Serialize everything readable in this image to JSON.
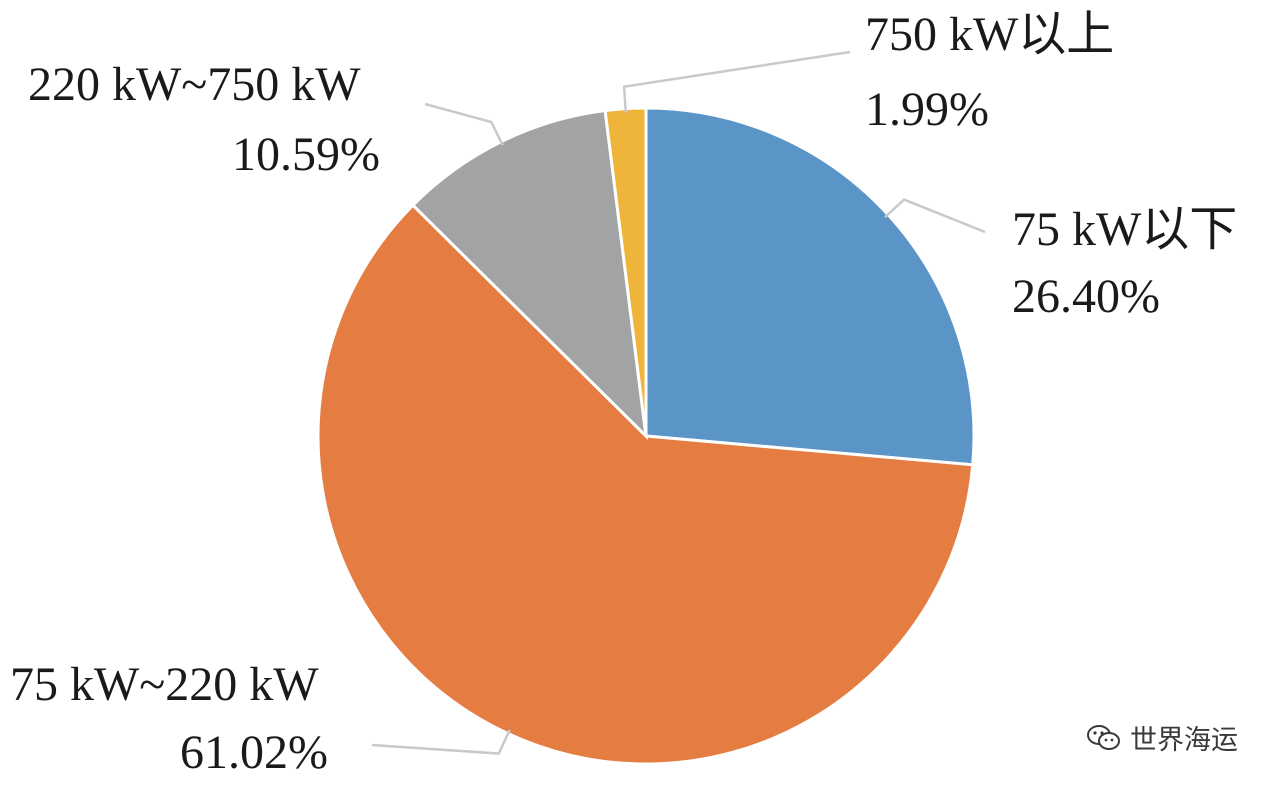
{
  "chart_data": {
    "type": "pie",
    "title": "",
    "slices": [
      {
        "label": "75 kW以下",
        "value": 26.4,
        "value_label": "26.40%",
        "color": "#5b95c8"
      },
      {
        "label": "75 kW~220 kW",
        "value": 61.02,
        "value_label": "61.02%",
        "color": "#e57d42"
      },
      {
        "label": "220 kW~750 kW",
        "value": 10.59,
        "value_label": "10.59%",
        "color": "#a2a3a5"
      },
      {
        "label": "750 kW以上",
        "value": 1.99,
        "value_label": "1.99%",
        "color": "#efb53a"
      }
    ],
    "start_angle_deg": 0,
    "direction": "clockwise",
    "legend": "none"
  },
  "watermark": {
    "text": "世界海运",
    "icon": "wechat-icon"
  }
}
